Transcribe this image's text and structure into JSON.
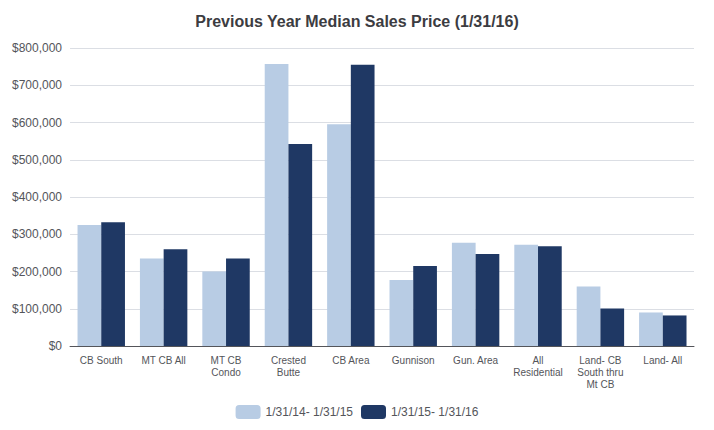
{
  "chart_data": {
    "type": "bar",
    "title": "Previous Year Median Sales Price (1/31/16)",
    "categories": [
      "CB South",
      "MT CB All",
      "MT CB\nCondo",
      "Crested\nButte",
      "CB Area",
      "Gunnison",
      "Gun. Area",
      "All\nResidential",
      "Land- CB\nSouth thru\nMt CB",
      "Land- All"
    ],
    "series": [
      {
        "name": "1/31/14- 1/31/15",
        "color": "#b8cce4",
        "values": [
          325000,
          235000,
          200000,
          757000,
          595000,
          177000,
          277000,
          272000,
          160000,
          90000
        ]
      },
      {
        "name": "1/31/15- 1/31/16",
        "color": "#1f3864",
        "values": [
          332000,
          260000,
          235000,
          542000,
          755000,
          215000,
          247000,
          268000,
          101000,
          82000
        ]
      }
    ],
    "ylim": [
      0,
      800000
    ],
    "yticks": [
      {
        "value": 0,
        "label": "$0"
      },
      {
        "value": 100000,
        "label": "$100,000"
      },
      {
        "value": 200000,
        "label": "$200,000"
      },
      {
        "value": 300000,
        "label": "$300,000"
      },
      {
        "value": 400000,
        "label": "$400,000"
      },
      {
        "value": 500000,
        "label": "$500,000"
      },
      {
        "value": 600000,
        "label": "$600,000"
      },
      {
        "value": 700000,
        "label": "$700,000"
      },
      {
        "value": 800000,
        "label": "$800,000"
      }
    ],
    "grid": true,
    "legend": "bottom"
  }
}
